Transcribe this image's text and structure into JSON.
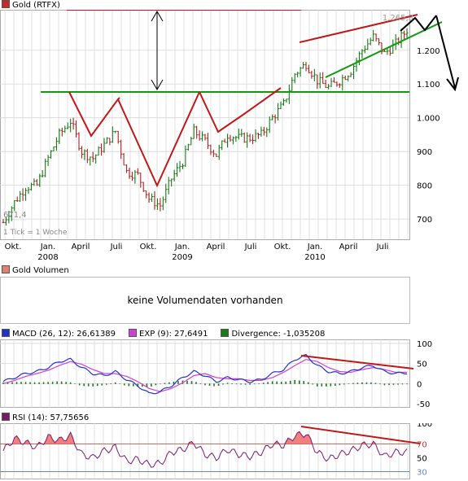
{
  "headers": {
    "price": "Gold (RTFX)",
    "volume": "Gold Volumen"
  },
  "price_chart": {
    "high_label": "1.265,3",
    "low_label": "671,4",
    "tick_note": "1 Tick = 1 Woche",
    "y_ticks": [
      "1.200",
      "1.100",
      "1.000",
      "900",
      "800",
      "700"
    ],
    "x_labels": [
      {
        "top": "Okt.",
        "bottom": ""
      },
      {
        "top": "Jan.",
        "bottom": "2008"
      },
      {
        "top": "April",
        "bottom": ""
      },
      {
        "top": "Juli",
        "bottom": ""
      },
      {
        "top": "Okt.",
        "bottom": ""
      },
      {
        "top": "Jan.",
        "bottom": "2009"
      },
      {
        "top": "April",
        "bottom": ""
      },
      {
        "top": "Juli",
        "bottom": ""
      },
      {
        "top": "Okt.",
        "bottom": ""
      },
      {
        "top": "Jan.",
        "bottom": "2010"
      },
      {
        "top": "April",
        "bottom": ""
      },
      {
        "top": "Juli",
        "bottom": ""
      }
    ]
  },
  "volume_panel": {
    "message": "keine Volumendaten vorhanden"
  },
  "macd_panel": {
    "legend": [
      {
        "label": "MACD (26, 12): 26,61389",
        "color": "#2233cc"
      },
      {
        "label": "EXP (9): 27,6491",
        "color": "#d040d0"
      },
      {
        "label": "Divergence: -1,035208",
        "color": "#1a7a1a"
      }
    ],
    "y_ticks": [
      "100",
      "50",
      "0",
      "-50"
    ]
  },
  "rsi_panel": {
    "legend": "RSI (14): 57,75656",
    "y_ticks": [
      "100",
      "70",
      "50",
      "30"
    ]
  },
  "colors": {
    "price_bars": "#1a7a1a",
    "price_bars_down": "#aa2222",
    "support_line": "#119911",
    "trend_red": "#c01818",
    "grid": "#d6d6d6",
    "macd": "#2233cc",
    "signal": "#d040d0",
    "histogram": "#1a7a1a",
    "rsi": "#7a1a6a",
    "rsi_fill": "#f08080"
  },
  "chart_data": [
    {
      "type": "line",
      "title": "Gold (RTFX)",
      "ylim": [
        640,
        1320
      ],
      "x": [
        "2007-09",
        "2007-10",
        "2007-11",
        "2007-12",
        "2008-01",
        "2008-02",
        "2008-03",
        "2008-04",
        "2008-05",
        "2008-06",
        "2008-07",
        "2008-08",
        "2008-09",
        "2008-10",
        "2008-11",
        "2008-12",
        "2009-01",
        "2009-02",
        "2009-03",
        "2009-04",
        "2009-05",
        "2009-06",
        "2009-07",
        "2009-08",
        "2009-09",
        "2009-10",
        "2009-11",
        "2009-12",
        "2010-01",
        "2010-02",
        "2010-03",
        "2010-04",
        "2010-05",
        "2010-06",
        "2010-07",
        "2010-08",
        "2010-09"
      ],
      "series": [
        {
          "values": [
            690,
            750,
            795,
            800,
            880,
            950,
            990,
            900,
            880,
            920,
            960,
            840,
            830,
            760,
            740,
            820,
            870,
            960,
            930,
            890,
            950,
            940,
            940,
            950,
            1000,
            1040,
            1130,
            1160,
            1110,
            1090,
            1110,
            1140,
            1200,
            1240,
            1190,
            1220,
            1260
          ]
        }
      ]
    },
    {
      "type": "line",
      "title": "MACD",
      "ylim": [
        -60,
        110
      ],
      "x": [
        "2007-09",
        "2007-10",
        "2007-11",
        "2007-12",
        "2008-01",
        "2008-02",
        "2008-03",
        "2008-04",
        "2008-05",
        "2008-06",
        "2008-07",
        "2008-08",
        "2008-09",
        "2008-10",
        "2008-11",
        "2008-12",
        "2009-01",
        "2009-02",
        "2009-03",
        "2009-04",
        "2009-05",
        "2009-06",
        "2009-07",
        "2009-08",
        "2009-09",
        "2009-10",
        "2009-11",
        "2009-12",
        "2010-01",
        "2010-02",
        "2010-03",
        "2010-04",
        "2010-05",
        "2010-06",
        "2010-07",
        "2010-08",
        "2010-09"
      ],
      "series": [
        {
          "name": "MACD (26, 12): 26,61389",
          "values": [
            5,
            15,
            25,
            30,
            40,
            55,
            60,
            40,
            25,
            20,
            30,
            10,
            -5,
            -25,
            -20,
            -5,
            15,
            30,
            20,
            5,
            15,
            10,
            5,
            10,
            25,
            35,
            60,
            70,
            45,
            30,
            25,
            30,
            40,
            45,
            30,
            25,
            27
          ]
        },
        {
          "name": "EXP (9): 27,6491",
          "values": [
            0,
            8,
            18,
            25,
            33,
            45,
            55,
            48,
            35,
            25,
            25,
            18,
            5,
            -12,
            -20,
            -12,
            2,
            20,
            25,
            15,
            12,
            12,
            8,
            8,
            15,
            28,
            45,
            60,
            55,
            40,
            30,
            28,
            35,
            40,
            35,
            28,
            28
          ]
        }
      ]
    },
    {
      "type": "line",
      "title": "RSI (14)",
      "ylim": [
        20,
        100
      ],
      "x": [
        "2007-09",
        "2007-10",
        "2007-11",
        "2007-12",
        "2008-01",
        "2008-02",
        "2008-03",
        "2008-04",
        "2008-05",
        "2008-06",
        "2008-07",
        "2008-08",
        "2008-09",
        "2008-10",
        "2008-11",
        "2008-12",
        "2009-01",
        "2009-02",
        "2009-03",
        "2009-04",
        "2009-05",
        "2009-06",
        "2009-07",
        "2009-08",
        "2009-09",
        "2009-10",
        "2009-11",
        "2009-12",
        "2010-01",
        "2010-02",
        "2010-03",
        "2010-04",
        "2010-05",
        "2010-06",
        "2010-07",
        "2010-08",
        "2010-09"
      ],
      "series": [
        {
          "name": "RSI (14): 57,75656",
          "values": [
            60,
            78,
            72,
            65,
            80,
            75,
            82,
            55,
            50,
            60,
            65,
            45,
            48,
            40,
            42,
            58,
            62,
            72,
            55,
            50,
            62,
            55,
            52,
            58,
            70,
            68,
            82,
            85,
            58,
            48,
            55,
            60,
            68,
            70,
            52,
            58,
            58
          ]
        }
      ]
    }
  ]
}
